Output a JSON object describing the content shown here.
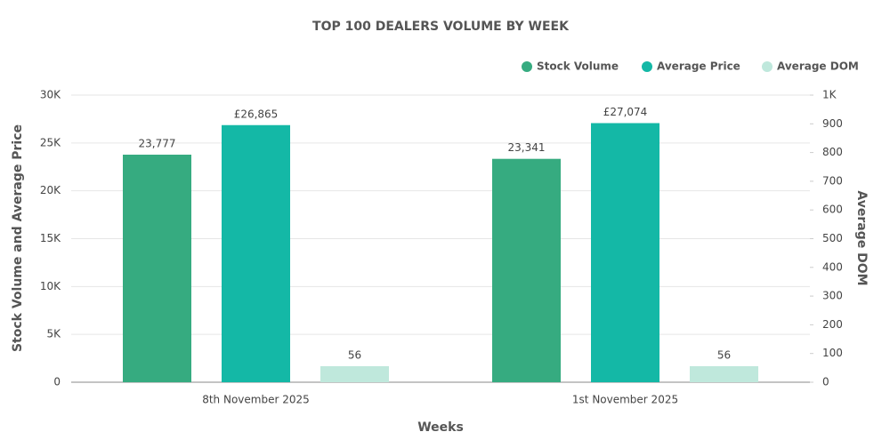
{
  "chart_data": {
    "type": "bar",
    "title": "TOP 100 DEALERS VOLUME BY WEEK",
    "x_label": "Weeks",
    "y_label": "Stock Volume and Average Price",
    "y2_label": "Average DOM",
    "categories": [
      "8th November 2025",
      "1st November 2025"
    ],
    "series": [
      {
        "name": "Stock Volume",
        "color": "#36ab80",
        "values": [
          23777,
          23341
        ],
        "value_labels": [
          "23,777",
          "23,341"
        ]
      },
      {
        "name": "Average Price",
        "color": "#14b8a6",
        "values": [
          26865,
          27074
        ],
        "value_labels": [
          "£26,865",
          "£27,074"
        ]
      },
      {
        "name": "Average DOM",
        "color": "#bfe8dc",
        "values": [
          56,
          56
        ],
        "axis": "y2"
      }
    ],
    "ylim": [
      0,
      30000
    ],
    "yticks": [
      0,
      {
        "value": 5000,
        "label": "5K"
      },
      {
        "value": 10000,
        "label": "10K"
      },
      {
        "value": 15000,
        "label": "15K"
      },
      {
        "value": 20000,
        "label": "20K"
      },
      {
        "value": 25000,
        "label": "25K"
      },
      {
        "value": 30000,
        "label": "30K"
      }
    ],
    "y2lim": [
      0,
      1000
    ],
    "y2ticks": [
      0,
      100,
      200,
      300,
      400,
      500,
      600,
      700,
      800,
      900,
      {
        "value": 1000,
        "label": "1K"
      }
    ],
    "grid": true,
    "legend": "top-right"
  }
}
